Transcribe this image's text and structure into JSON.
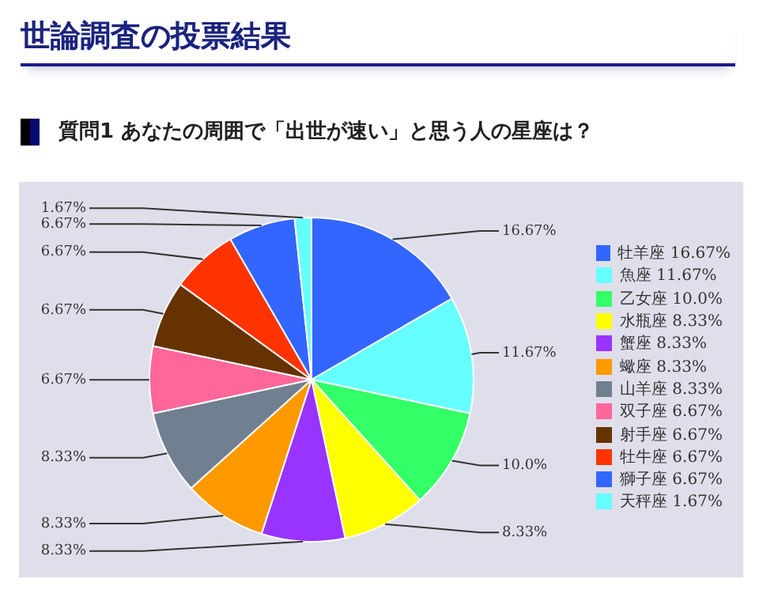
{
  "chart_data": {
    "type": "pie",
    "title": "世論調査の投票結果",
    "subtitle": "質問1 あなたの周囲で「出世が速い」と思う人の星座は？",
    "categories": [
      "牡羊座",
      "魚座",
      "乙女座",
      "水瓶座",
      "蟹座",
      "蠍座",
      "山羊座",
      "双子座",
      "射手座",
      "牡牛座",
      "獅子座",
      "天秤座"
    ],
    "values": [
      16.67,
      11.67,
      10.0,
      8.33,
      8.33,
      8.33,
      8.33,
      6.67,
      6.67,
      6.67,
      6.67,
      1.67
    ],
    "value_labels": [
      "16.67%",
      "11.67%",
      "10.0%",
      "8.33%",
      "8.33%",
      "8.33%",
      "8.33%",
      "6.67%",
      "6.67%",
      "6.67%",
      "6.67%",
      "1.67%"
    ],
    "colors": [
      "#3366ff",
      "#66ffff",
      "#33ff66",
      "#ffff00",
      "#9933ff",
      "#ff9900",
      "#708090",
      "#ff6699",
      "#663300",
      "#ff3300",
      "#3366ff",
      "#66ffff"
    ],
    "legend": "right"
  }
}
